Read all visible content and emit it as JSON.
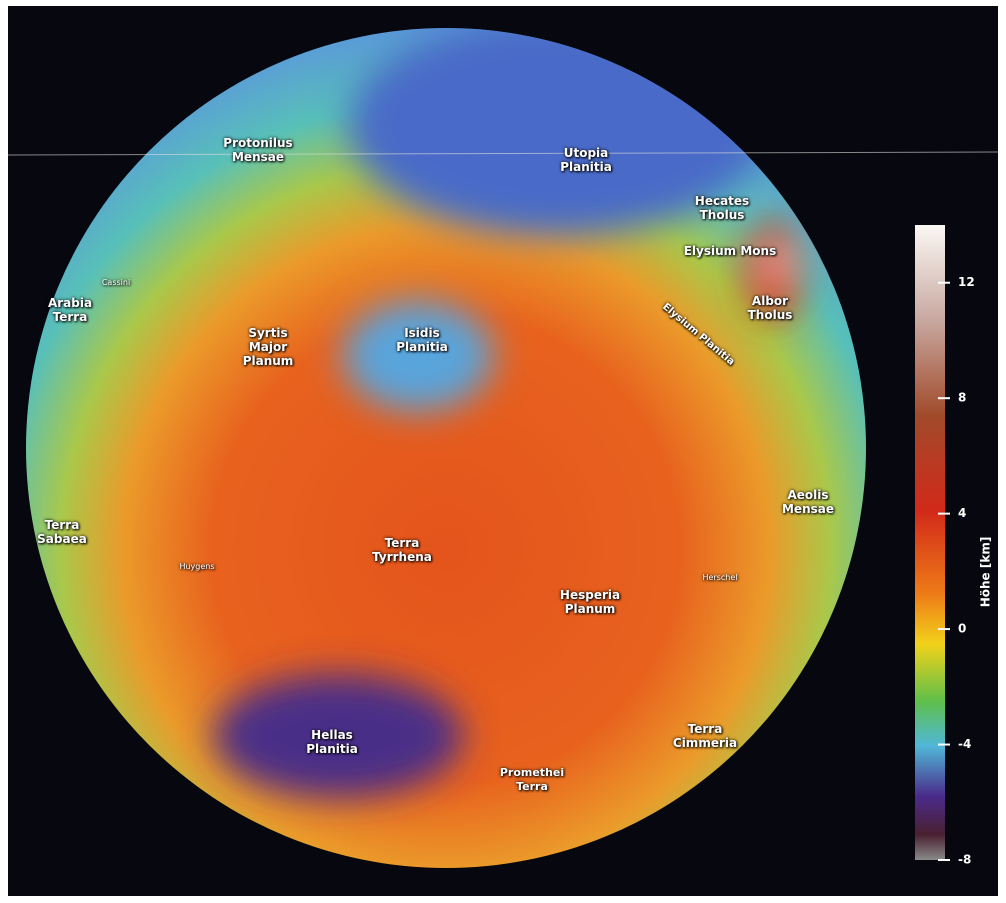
{
  "map": {
    "labels": [
      "Protonilus Mensae",
      "Utopia Planitia",
      "Hecates Tholus",
      "Elysium Mons",
      "Albor Tholus",
      "Elysium Planitia",
      "Cassini",
      "Arabia Terra",
      "Syrtis Major Planum",
      "Isidis Planitia",
      "Aeolis Mensae",
      "Terra Sabaea",
      "Huygens",
      "Terra Tyrrhena",
      "Hesperia Planum",
      "Herschel",
      "Hellas Planitia",
      "Terra Cimmeria",
      "Promethei Terra"
    ]
  },
  "colorbar": {
    "label": "Höhe [km]",
    "lim": [
      -8,
      14
    ],
    "ticks": [
      12,
      8,
      4,
      0,
      -4,
      -8
    ]
  }
}
